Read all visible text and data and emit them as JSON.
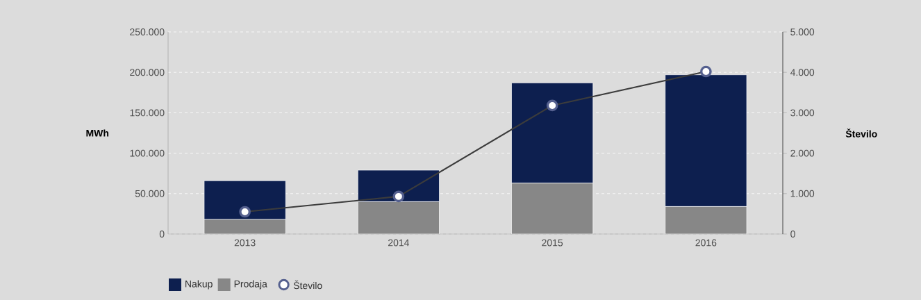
{
  "chart_data": {
    "type": "bar",
    "stacked": true,
    "categories": [
      "2013",
      "2014",
      "2015",
      "2016"
    ],
    "ylabel": "MWh",
    "y2label": "Število",
    "ylim": [
      0,
      250000
    ],
    "yticks": [
      {
        "value": 0,
        "label": "0"
      },
      {
        "value": 50000,
        "label": "50.000"
      },
      {
        "value": 100000,
        "label": "100.000"
      },
      {
        "value": 150000,
        "label": "150.000"
      },
      {
        "value": 200000,
        "label": "200.000"
      },
      {
        "value": 250000,
        "label": "250.000"
      }
    ],
    "y2lim": [
      0,
      5000
    ],
    "y2ticks": [
      {
        "value": 0,
        "label": "0"
      },
      {
        "value": 1000,
        "label": "1.000"
      },
      {
        "value": 2000,
        "label": "2.000"
      },
      {
        "value": 3000,
        "label": "3.000"
      },
      {
        "value": 4000,
        "label": "4.000"
      },
      {
        "value": 5000,
        "label": "5.000"
      }
    ],
    "grid": "y",
    "legend": "bottom left",
    "series": [
      {
        "name": "Prodaja",
        "color": "#878787",
        "values": [
          18000,
          40000,
          63000,
          34000
        ]
      },
      {
        "name": "Nakup",
        "color": "#0d1f4f",
        "values": [
          48000,
          39000,
          124000,
          163000
        ]
      },
      {
        "name": "Število",
        "type": "line",
        "axis": "y2",
        "marker": "circle",
        "color": "#3c3c3c",
        "values": [
          550,
          930,
          3180,
          4020
        ]
      }
    ]
  }
}
